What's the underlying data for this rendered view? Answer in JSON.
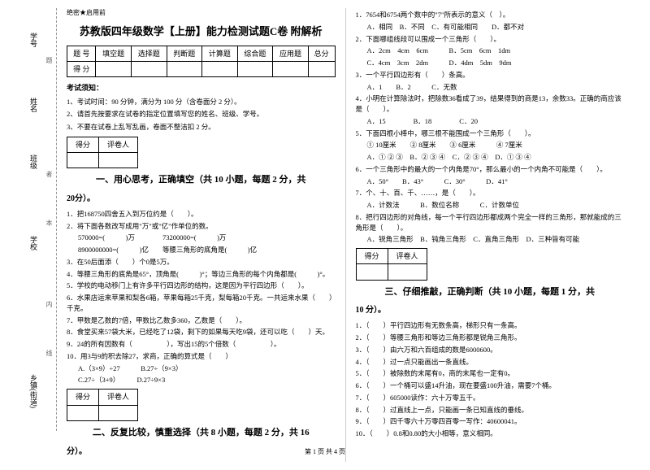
{
  "sidebar": {
    "labels": [
      "学号",
      "姓名",
      "班级",
      "学校",
      "",
      "乡镇(街道)"
    ],
    "dividers": [
      "题",
      "者",
      "本",
      "内",
      "线",
      "封"
    ]
  },
  "secret": "绝密★启用前",
  "title": "苏教版四年级数学【上册】能力检测试题C卷 附解析",
  "scoreTable": {
    "headers": [
      "题 号",
      "填空题",
      "选择题",
      "判断题",
      "计算题",
      "综合题",
      "应用题",
      "总分"
    ],
    "row2": "得 分"
  },
  "notice": {
    "title": "考试须知：",
    "items": [
      "1、考试时间：90 分钟，满分为 100 分（含卷面分 2 分）。",
      "2、请首先按要求在试卷的指定位置填写您的姓名、班级、学号。",
      "3、不要在试卷上乱写乱画，卷面不整洁扣 2 分。"
    ]
  },
  "smallTable": {
    "c1": "得分",
    "c2": "评卷人"
  },
  "section1": {
    "title": "一、用心思考，正确填空（共 10 小题，每题 2 分，共",
    "suffix": "20分）。",
    "q1": "1．把168750四舍五入到万位约是（　　）。",
    "q2": "2．将下面各数改写成用\"万\"或\"亿\"作单位的数。",
    "q2a": "570000=(　　　)万　　　　73200000=(　　　)万",
    "q2b": "8900000000=(　　　)亿　　等腰三角形的底角是(　　　)亿",
    "q3": "3．在50后面添（　　）个0是5万。",
    "q4": "4．等腰三角形的底角是65°，顶角是(　　　)°；等边三角形的每个内角都是(　　　)°。",
    "q5": "5．学校的电动移门上有许多平行四边形的结构，这是因为平行四边形（　　）。",
    "q6": "6．水果店运来苹果和梨各6箱，苹果每箱25千克，梨每箱20千克。一共运来水果（　　）千克。",
    "q7": "7．甲数是乙数的7倍，甲数比乙数多360，乙数是（　　）。",
    "q8": "8．食堂买来57袋大米，已经吃了12袋，剩下的如果每天吃9袋，还可以吃（　　）天。",
    "q9": "9．24的所有因数有（　　　　　），写出15的5个倍数（　　　　　）。",
    "q10": "10．用3与9的积去除27，求商，正确的算式是（　　）",
    "q10a": "A.（3×9）÷27　　　B.27÷（9×3）",
    "q10b": "C.27÷（3+9）　　　D.27÷9×3"
  },
  "section2": {
    "title": "二、反复比较，慎重选择（共 8 小题，每题 2 分，共 16",
    "suffix": "分）。",
    "q1": "1．7654和6754两个数中的\"7\"所表示的意义（　）。",
    "q1a": "A．相同　B．不同　C．有可能相同　　D．都不对",
    "q2": "2．下面哪组线段可以围成一个三角形（　　）。",
    "q2a": "A．2cm　4cm　6cm　　　B．5cm　6cm　1dm",
    "q2b": "C．4cm　3cm　2dm　　　D．4dm　5dm　9dm",
    "q3": "3．一个平行四边形有（　　）条高。",
    "q3a": "A．1　　B．2　　　C．无数",
    "q4": "4．小明在计算除法时，把除数36看成了39，结果得到的商是13，余数33。正确的商应该是（　　）。",
    "q4a": "A．15　　　　B．18　　　　C．20",
    "q5": "5．下面四根小棒中，哪三根不能围成一个三角形（　　）。",
    "q5a": "① 10厘米　　② 8厘米　　③ 6厘米　　　④ 7厘米",
    "q5b": "A．① ② ③　B．② ③ ④　C．② ③ ④　D．① ③ ④",
    "q6": "6．一个三角形中的最大的一个内角是70°，那么最小的一个内角不可能是（　　）。",
    "q6a": "A．50°　　B．43°　　　C．30°　　　D．41°",
    "q7": "7．个、十、百、千、……，是（　　）。",
    "q7a": "A．计数法　　　B．数位名称　　　C．计数单位",
    "q8": "8．把行四边形的对角线，每一个平行四边形都成两个完全一样的三角形，那就能成的三角形是（　　）。",
    "q8a": "A．锐角三角形　B．钝角三角形　C．直角三角形　D．三种皆有可能"
  },
  "section3": {
    "title": "三、仔细推敲，正确判断（共 10 小题，每题 1 分，共",
    "suffix": "10 分）。",
    "q1": "1．（　　）平行四边形有无数条高，梯形只有一条高。",
    "q2": "2．（　　）等腰三角形和等边三角形都是锐角三角形。",
    "q3": "3．（　　）由六万和六百组成的数是6000600。",
    "q4": "4．（　　）过一点只能画出一条直线。",
    "q5": "5．（　　）被除数的末尾有0，商的末尾也一定有0。",
    "q6": "6．（　　）一个桶可以盛14升油，现在要盛100升油，需要7个桶。",
    "q7": "7．（　　）605000读作：六十万零五千。",
    "q8": "8．（　　）过直线上一点，只能画一条已知直线的垂线。",
    "q9": "9．（　　）四千零六十万零四百零一写作：40600041。",
    "q10": "10．（　　）0.8和0.80的大小相等，意义相同。"
  },
  "footer": "第 1 页 共 4 页"
}
